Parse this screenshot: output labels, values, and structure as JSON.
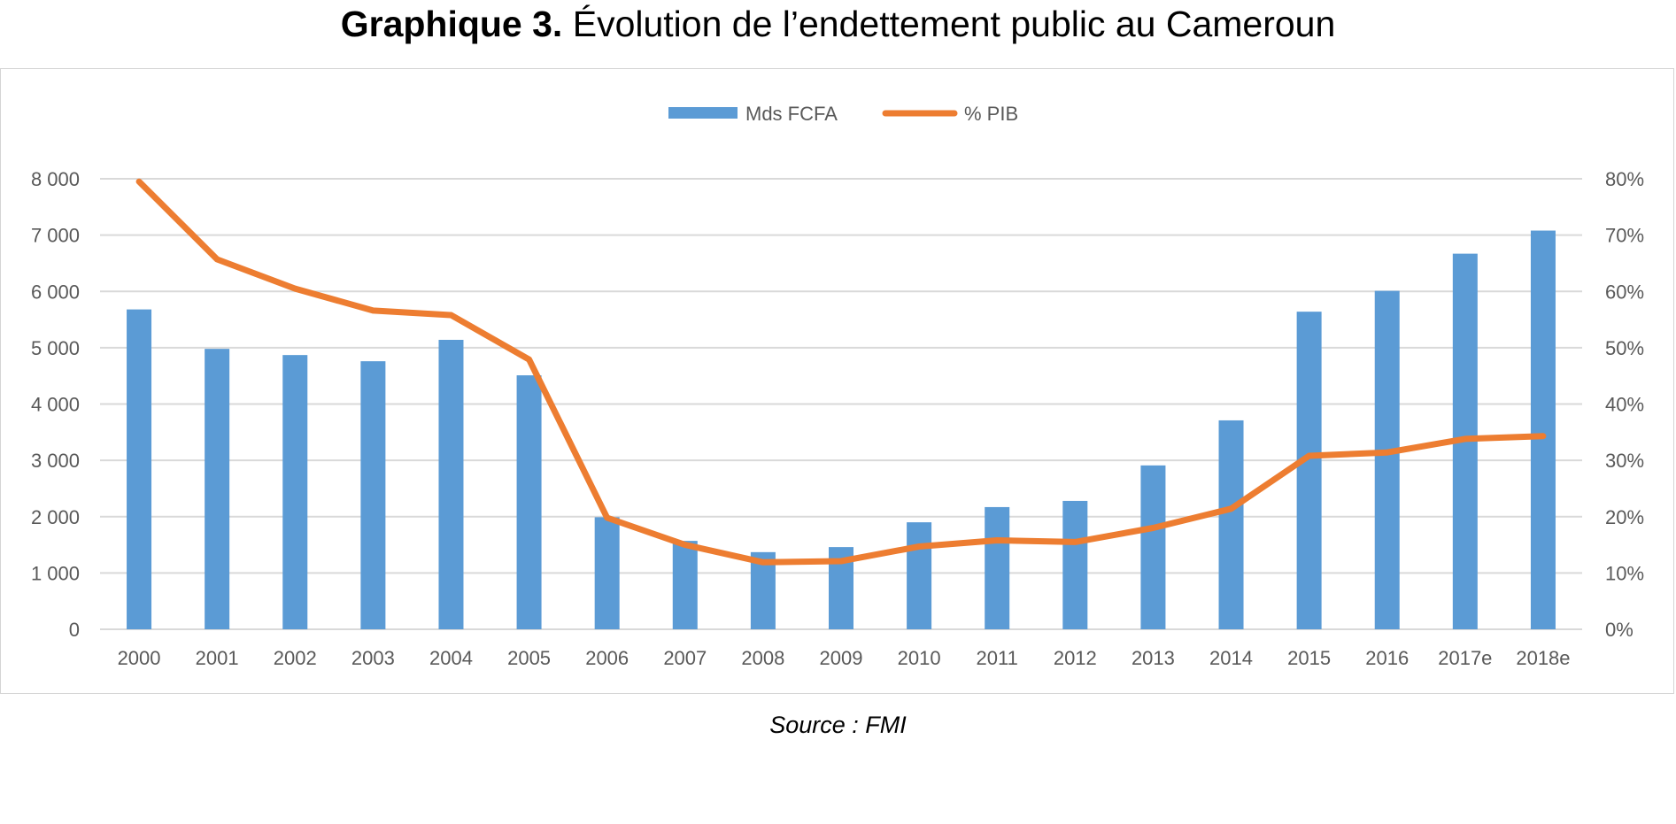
{
  "page": {
    "title_bold": "Graphique 3.",
    "title_rest": "Évolution de l’endettement public au Cameroun",
    "source": "Source : FMI"
  },
  "colors": {
    "bars": "#5b9bd5",
    "line": "#ed7d31",
    "grid": "#d9d9d9",
    "tick_text": "#595959"
  },
  "chart_data": {
    "type": "bar",
    "categories": [
      "2000",
      "2001",
      "2002",
      "2003",
      "2004",
      "2005",
      "2006",
      "2007",
      "2008",
      "2009",
      "2010",
      "2011",
      "2012",
      "2013",
      "2014",
      "2015",
      "2016",
      "2017e",
      "2018e"
    ],
    "series": [
      {
        "name": "Mds FCFA",
        "type": "bar",
        "axis": "left",
        "values": [
          5680,
          4980,
          4870,
          4760,
          5140,
          4510,
          1990,
          1570,
          1370,
          1460,
          1900,
          2170,
          2280,
          2910,
          3710,
          5640,
          6010,
          6670,
          7080
        ]
      },
      {
        "name": "% PIB",
        "type": "line",
        "axis": "right",
        "values": [
          79.5,
          65.7,
          60.5,
          56.6,
          55.8,
          47.9,
          19.8,
          15.0,
          11.9,
          12.1,
          14.7,
          15.8,
          15.5,
          18.0,
          21.4,
          30.8,
          31.4,
          33.8,
          34.3
        ]
      }
    ],
    "legend": [
      "Mds FCFA",
      "% PIB"
    ],
    "legend_position": "top",
    "y_left": {
      "min": 0,
      "max": 8000,
      "ticks": [
        "0",
        "1 000",
        "2 000",
        "3 000",
        "4 000",
        "5 000",
        "6 000",
        "7 000",
        "8 000"
      ]
    },
    "y_right": {
      "min": 0,
      "max": 80,
      "ticks": [
        "0%",
        "10%",
        "20%",
        "30%",
        "40%",
        "50%",
        "60%",
        "70%",
        "80%"
      ]
    },
    "grid": true
  }
}
